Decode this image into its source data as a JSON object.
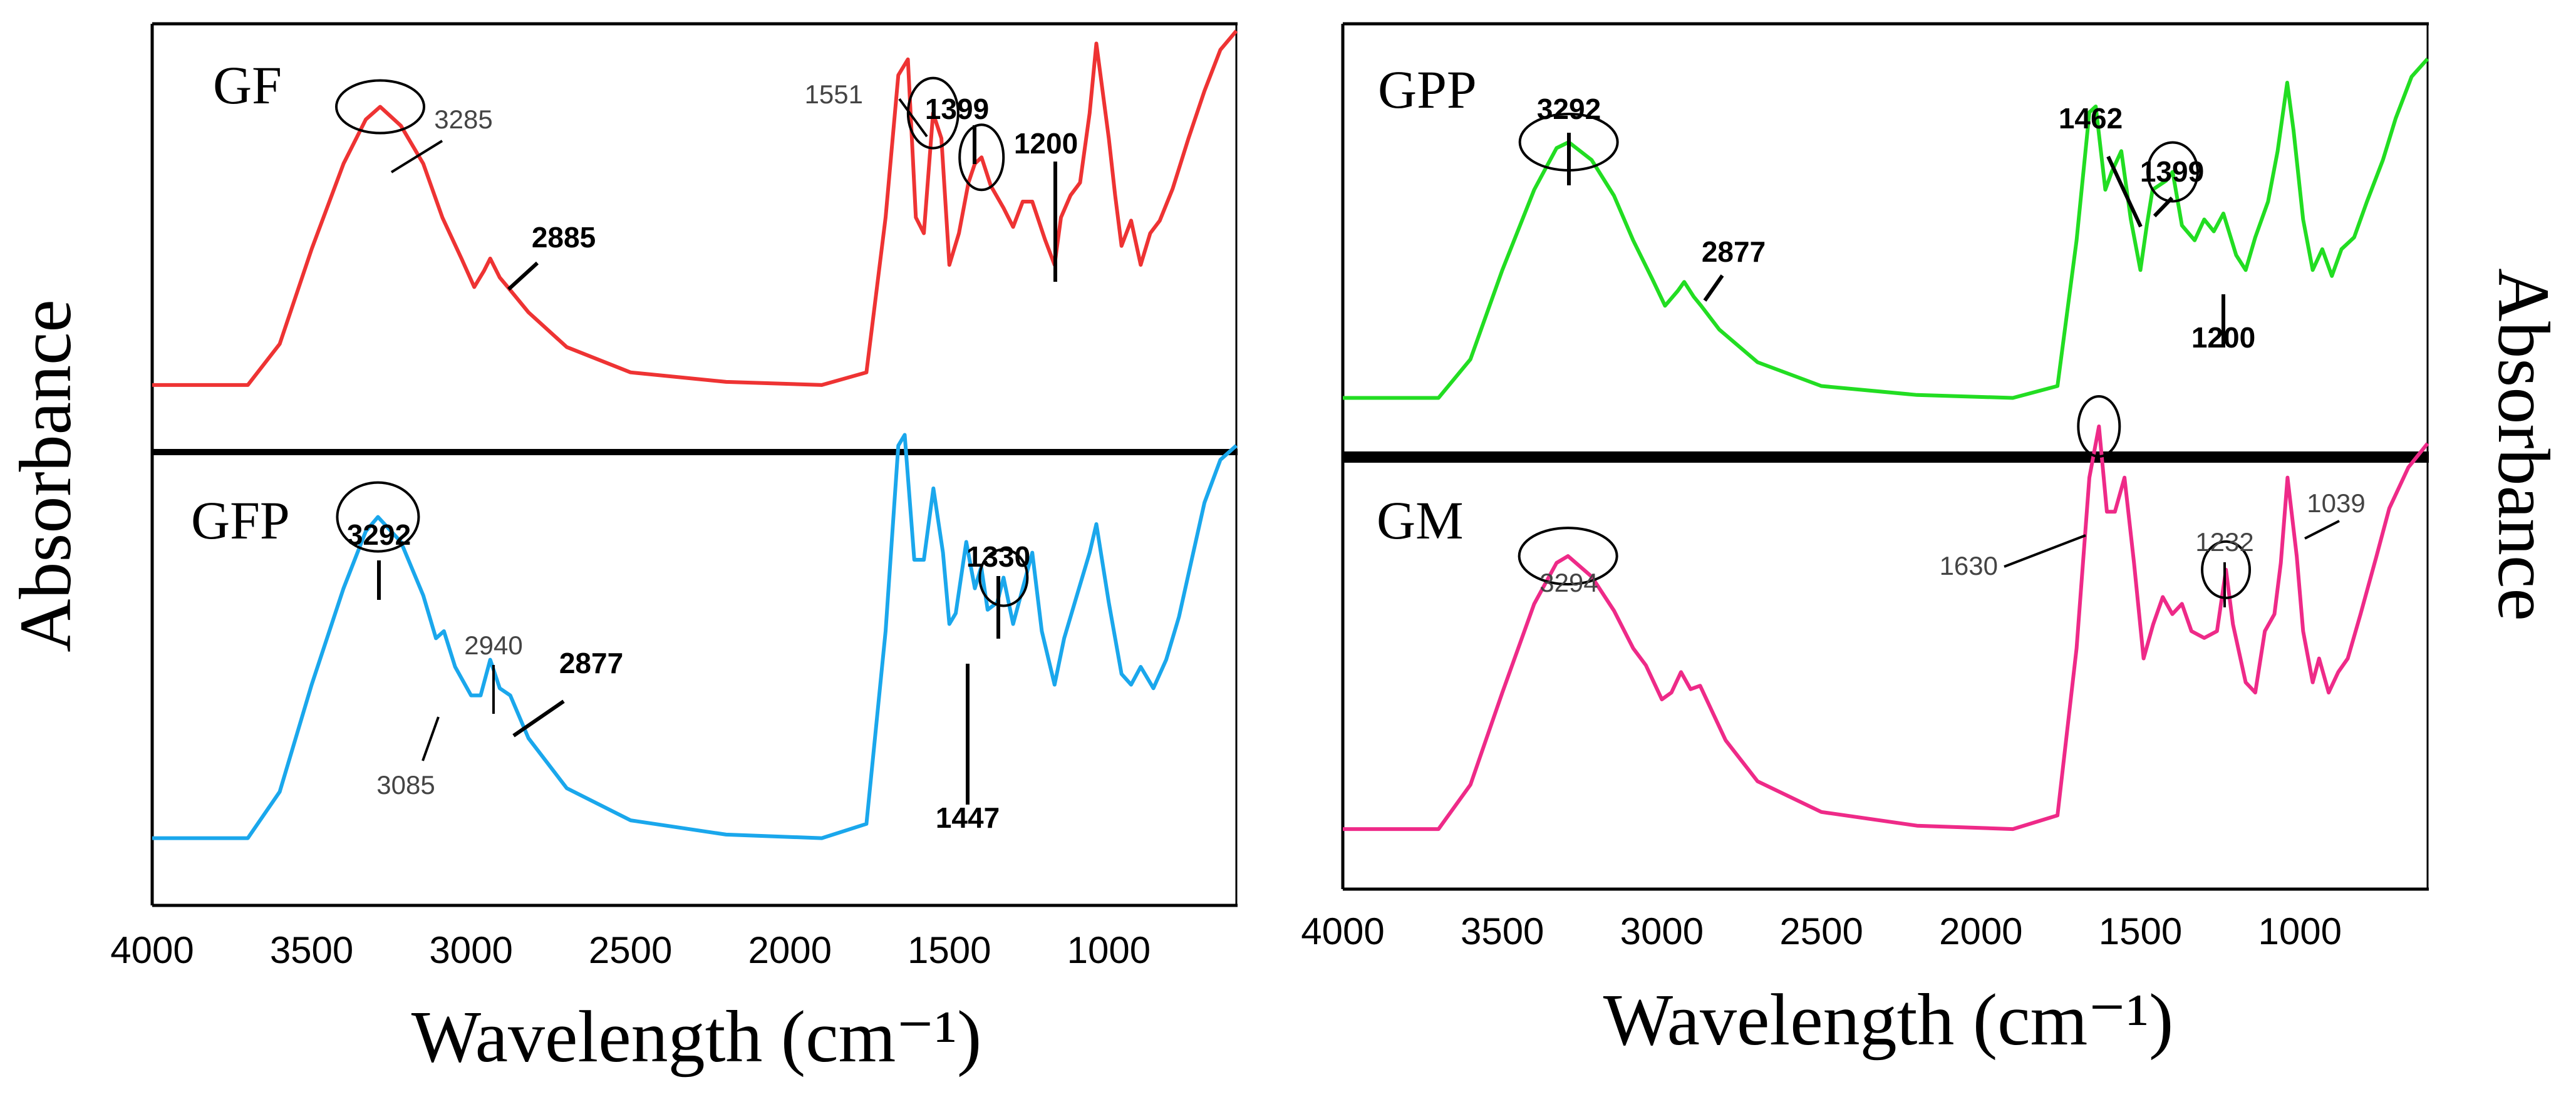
{
  "chart_data": {
    "type": "line",
    "title": "",
    "xlabel": "Wavelength (cm⁻¹)",
    "ylabel": "Absorbance",
    "xlim": [
      4000,
      600
    ],
    "x_ticks": [
      "4000",
      "3500",
      "3000",
      "2500",
      "2000",
      "1500",
      "1000"
    ],
    "panels": [
      {
        "id": "gf",
        "name": "GF",
        "color": "#EE3333",
        "spectrum": [
          [
            4000,
            0.02
          ],
          [
            3700,
            0.02
          ],
          [
            3600,
            0.15
          ],
          [
            3500,
            0.45
          ],
          [
            3400,
            0.72
          ],
          [
            3330,
            0.86
          ],
          [
            3285,
            0.9
          ],
          [
            3220,
            0.84
          ],
          [
            3150,
            0.72
          ],
          [
            3090,
            0.55
          ],
          [
            3030,
            0.42
          ],
          [
            2990,
            0.33
          ],
          [
            2960,
            0.38
          ],
          [
            2940,
            0.42
          ],
          [
            2910,
            0.36
          ],
          [
            2885,
            0.33
          ],
          [
            2820,
            0.25
          ],
          [
            2700,
            0.14
          ],
          [
            2500,
            0.06
          ],
          [
            2200,
            0.03
          ],
          [
            1900,
            0.02
          ],
          [
            1760,
            0.06
          ],
          [
            1700,
            0.55
          ],
          [
            1660,
            1.0
          ],
          [
            1630,
            1.05
          ],
          [
            1605,
            0.55
          ],
          [
            1580,
            0.5
          ],
          [
            1551,
            0.88
          ],
          [
            1525,
            0.8
          ],
          [
            1500,
            0.4
          ],
          [
            1470,
            0.5
          ],
          [
            1440,
            0.66
          ],
          [
            1420,
            0.72
          ],
          [
            1399,
            0.74
          ],
          [
            1370,
            0.65
          ],
          [
            1330,
            0.58
          ],
          [
            1300,
            0.52
          ],
          [
            1270,
            0.6
          ],
          [
            1240,
            0.6
          ],
          [
            1200,
            0.48
          ],
          [
            1170,
            0.4
          ],
          [
            1150,
            0.55
          ],
          [
            1120,
            0.62
          ],
          [
            1090,
            0.66
          ],
          [
            1060,
            0.88
          ],
          [
            1039,
            1.1
          ],
          [
            1000,
            0.8
          ],
          [
            980,
            0.62
          ],
          [
            960,
            0.46
          ],
          [
            930,
            0.54
          ],
          [
            900,
            0.4
          ],
          [
            870,
            0.5
          ],
          [
            840,
            0.54
          ],
          [
            800,
            0.64
          ],
          [
            750,
            0.8
          ],
          [
            700,
            0.95
          ],
          [
            650,
            1.08
          ],
          [
            600,
            1.14
          ]
        ],
        "labels": [
          {
            "text": "3285",
            "x": 3285,
            "y": 0.9,
            "bold": false,
            "circle": true
          },
          {
            "text": "2885",
            "x": 2885,
            "y": 0.33,
            "bold": true,
            "circle": false
          },
          {
            "text": "1551",
            "x": 1551,
            "y": 0.88,
            "bold": false,
            "circle": true
          },
          {
            "text": "1399",
            "x": 1399,
            "y": 0.74,
            "bold": true,
            "circle": true
          },
          {
            "text": "1200",
            "x": 1200,
            "y": 0.48,
            "bold": true,
            "circle": false
          }
        ]
      },
      {
        "id": "gfp",
        "name": "GFP",
        "color": "#1AA7EC",
        "spectrum": [
          [
            4000,
            0.02
          ],
          [
            3700,
            0.02
          ],
          [
            3600,
            0.15
          ],
          [
            3500,
            0.45
          ],
          [
            3400,
            0.72
          ],
          [
            3330,
            0.88
          ],
          [
            3292,
            0.92
          ],
          [
            3220,
            0.85
          ],
          [
            3150,
            0.7
          ],
          [
            3110,
            0.58
          ],
          [
            3085,
            0.6
          ],
          [
            3050,
            0.5
          ],
          [
            3000,
            0.42
          ],
          [
            2970,
            0.42
          ],
          [
            2940,
            0.52
          ],
          [
            2910,
            0.44
          ],
          [
            2877,
            0.42
          ],
          [
            2820,
            0.3
          ],
          [
            2700,
            0.16
          ],
          [
            2500,
            0.07
          ],
          [
            2200,
            0.03
          ],
          [
            1900,
            0.02
          ],
          [
            1760,
            0.06
          ],
          [
            1700,
            0.6
          ],
          [
            1660,
            1.12
          ],
          [
            1640,
            1.15
          ],
          [
            1610,
            0.8
          ],
          [
            1580,
            0.8
          ],
          [
            1550,
            1.0
          ],
          [
            1520,
            0.82
          ],
          [
            1500,
            0.62
          ],
          [
            1480,
            0.65
          ],
          [
            1447,
            0.85
          ],
          [
            1420,
            0.72
          ],
          [
            1400,
            0.78
          ],
          [
            1380,
            0.66
          ],
          [
            1350,
            0.68
          ],
          [
            1330,
            0.75
          ],
          [
            1300,
            0.62
          ],
          [
            1270,
            0.72
          ],
          [
            1240,
            0.82
          ],
          [
            1210,
            0.6
          ],
          [
            1170,
            0.45
          ],
          [
            1140,
            0.58
          ],
          [
            1100,
            0.7
          ],
          [
            1060,
            0.82
          ],
          [
            1039,
            0.9
          ],
          [
            1000,
            0.68
          ],
          [
            960,
            0.48
          ],
          [
            930,
            0.45
          ],
          [
            900,
            0.5
          ],
          [
            860,
            0.44
          ],
          [
            820,
            0.52
          ],
          [
            780,
            0.64
          ],
          [
            740,
            0.8
          ],
          [
            700,
            0.96
          ],
          [
            650,
            1.08
          ],
          [
            600,
            1.12
          ]
        ],
        "labels": [
          {
            "text": "3292",
            "x": 3292,
            "y": 0.92,
            "bold": true,
            "circle": true
          },
          {
            "text": "2940",
            "x": 2940,
            "y": 0.52,
            "bold": false,
            "circle": false
          },
          {
            "text": "2877",
            "x": 2877,
            "y": 0.42,
            "bold": true,
            "circle": false
          },
          {
            "text": "3085",
            "x": 3085,
            "y": 0.6,
            "bold": false,
            "circle": false
          },
          {
            "text": "1330",
            "x": 1330,
            "y": 0.75,
            "bold": true,
            "circle": true
          },
          {
            "text": "1447",
            "x": 1447,
            "y": 0.85,
            "bold": true,
            "circle": false
          }
        ]
      },
      {
        "id": "gpp",
        "name": "GPP",
        "color": "#22DD22",
        "spectrum": [
          [
            4000,
            0.02
          ],
          [
            3700,
            0.02
          ],
          [
            3600,
            0.15
          ],
          [
            3500,
            0.45
          ],
          [
            3400,
            0.72
          ],
          [
            3330,
            0.86
          ],
          [
            3292,
            0.88
          ],
          [
            3220,
            0.82
          ],
          [
            3150,
            0.7
          ],
          [
            3090,
            0.55
          ],
          [
            3030,
            0.42
          ],
          [
            2990,
            0.33
          ],
          [
            2950,
            0.38
          ],
          [
            2930,
            0.41
          ],
          [
            2900,
            0.36
          ],
          [
            2877,
            0.33
          ],
          [
            2820,
            0.25
          ],
          [
            2700,
            0.14
          ],
          [
            2500,
            0.06
          ],
          [
            2200,
            0.03
          ],
          [
            1900,
            0.02
          ],
          [
            1760,
            0.06
          ],
          [
            1700,
            0.55
          ],
          [
            1660,
            0.98
          ],
          [
            1640,
            1.0
          ],
          [
            1610,
            0.72
          ],
          [
            1590,
            0.78
          ],
          [
            1560,
            0.85
          ],
          [
            1530,
            0.62
          ],
          [
            1500,
            0.45
          ],
          [
            1480,
            0.6
          ],
          [
            1462,
            0.72
          ],
          [
            1420,
            0.75
          ],
          [
            1399,
            0.78
          ],
          [
            1370,
            0.6
          ],
          [
            1330,
            0.55
          ],
          [
            1300,
            0.62
          ],
          [
            1270,
            0.58
          ],
          [
            1240,
            0.64
          ],
          [
            1200,
            0.5
          ],
          [
            1170,
            0.45
          ],
          [
            1140,
            0.56
          ],
          [
            1100,
            0.68
          ],
          [
            1070,
            0.85
          ],
          [
            1040,
            1.08
          ],
          [
            1020,
            0.92
          ],
          [
            990,
            0.62
          ],
          [
            960,
            0.45
          ],
          [
            930,
            0.52
          ],
          [
            900,
            0.43
          ],
          [
            870,
            0.52
          ],
          [
            830,
            0.56
          ],
          [
            790,
            0.68
          ],
          [
            740,
            0.82
          ],
          [
            700,
            0.96
          ],
          [
            650,
            1.1
          ],
          [
            600,
            1.16
          ]
        ],
        "labels": [
          {
            "text": "3292",
            "x": 3292,
            "y": 0.88,
            "bold": true,
            "circle": true
          },
          {
            "text": "2877",
            "x": 2877,
            "y": 0.33,
            "bold": true,
            "circle": false
          },
          {
            "text": "1462",
            "x": 1462,
            "y": 0.72,
            "bold": true,
            "circle": false
          },
          {
            "text": "1399",
            "x": 1399,
            "y": 0.78,
            "bold": true,
            "circle": true
          },
          {
            "text": "1200",
            "x": 1200,
            "y": 0.5,
            "bold": true,
            "circle": false
          }
        ]
      },
      {
        "id": "gm",
        "name": "GM",
        "color": "#EE2A88",
        "spectrum": [
          [
            4000,
            0.02
          ],
          [
            3700,
            0.02
          ],
          [
            3600,
            0.15
          ],
          [
            3500,
            0.42
          ],
          [
            3400,
            0.68
          ],
          [
            3330,
            0.8
          ],
          [
            3294,
            0.82
          ],
          [
            3220,
            0.76
          ],
          [
            3150,
            0.66
          ],
          [
            3090,
            0.55
          ],
          [
            3050,
            0.5
          ],
          [
            3000,
            0.4
          ],
          [
            2970,
            0.42
          ],
          [
            2940,
            0.48
          ],
          [
            2910,
            0.43
          ],
          [
            2880,
            0.44
          ],
          [
            2850,
            0.38
          ],
          [
            2800,
            0.28
          ],
          [
            2700,
            0.16
          ],
          [
            2500,
            0.07
          ],
          [
            2200,
            0.03
          ],
          [
            1900,
            0.02
          ],
          [
            1760,
            0.06
          ],
          [
            1700,
            0.55
          ],
          [
            1660,
            1.05
          ],
          [
            1630,
            1.2
          ],
          [
            1605,
            0.95
          ],
          [
            1580,
            0.95
          ],
          [
            1550,
            1.05
          ],
          [
            1520,
            0.8
          ],
          [
            1490,
            0.52
          ],
          [
            1460,
            0.62
          ],
          [
            1430,
            0.7
          ],
          [
            1400,
            0.65
          ],
          [
            1370,
            0.68
          ],
          [
            1340,
            0.6
          ],
          [
            1300,
            0.58
          ],
          [
            1260,
            0.6
          ],
          [
            1232,
            0.78
          ],
          [
            1210,
            0.62
          ],
          [
            1170,
            0.45
          ],
          [
            1140,
            0.42
          ],
          [
            1110,
            0.6
          ],
          [
            1080,
            0.65
          ],
          [
            1060,
            0.8
          ],
          [
            1039,
            1.05
          ],
          [
            1010,
            0.82
          ],
          [
            990,
            0.6
          ],
          [
            960,
            0.45
          ],
          [
            940,
            0.52
          ],
          [
            910,
            0.42
          ],
          [
            880,
            0.48
          ],
          [
            850,
            0.52
          ],
          [
            810,
            0.65
          ],
          [
            760,
            0.82
          ],
          [
            720,
            0.96
          ],
          [
            660,
            1.08
          ],
          [
            600,
            1.15
          ]
        ],
        "labels": [
          {
            "text": "3294",
            "x": 3294,
            "y": 0.82,
            "bold": false,
            "circle": true
          },
          {
            "text": "1630",
            "x": 1630,
            "y": 1.2,
            "bold": false,
            "circle": true
          },
          {
            "text": "1232",
            "x": 1232,
            "y": 0.78,
            "bold": false,
            "circle": true
          },
          {
            "text": "1039",
            "x": 1039,
            "y": 1.05,
            "bold": false,
            "circle": false
          }
        ]
      }
    ]
  }
}
